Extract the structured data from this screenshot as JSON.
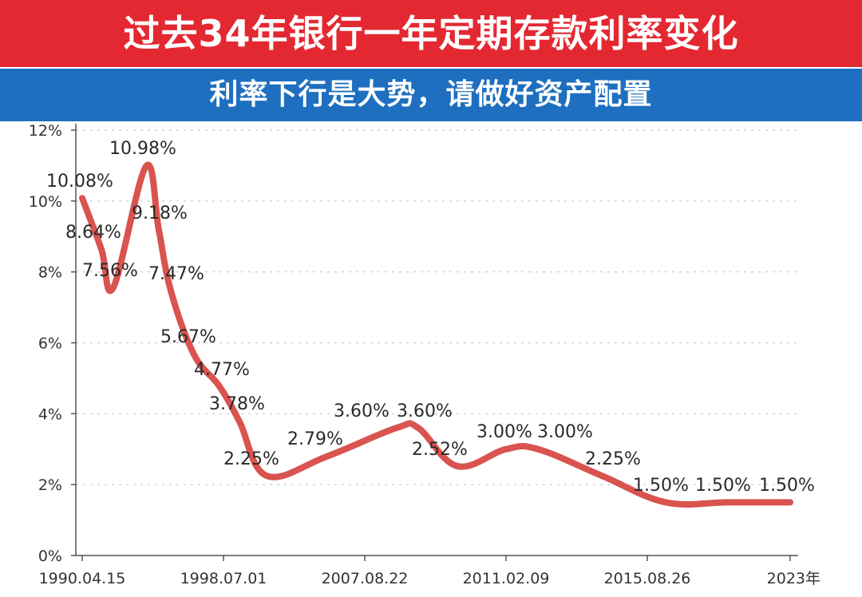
{
  "header": {
    "title": "过去34年银行一年定期存款利率变化",
    "subtitle": "利率下行是大势，请做好资产配置"
  },
  "colors": {
    "title_bg": "#e42832",
    "subtitle_bg": "#1e6fbf",
    "line": "#d9534f"
  },
  "chart_data": {
    "type": "line",
    "title": "过去34年银行一年定期存款利率变化",
    "subtitle": "利率下行是大势，请做好资产配置",
    "xlabel": "",
    "ylabel": "",
    "ylim": [
      0,
      12
    ],
    "y_ticks": [
      "0%",
      "2%",
      "4%",
      "6%",
      "8%",
      "10%",
      "12%"
    ],
    "x_tick_labels": [
      "1990.04.15",
      "1998.07.01",
      "2007.08.22",
      "2011.02.09",
      "2015.08.26",
      "2023年"
    ],
    "grid": true,
    "series": [
      {
        "values": [
          10.08,
          8.64,
          7.56,
          10.98,
          9.18,
          7.47,
          5.67,
          4.77,
          3.78,
          2.25,
          2.79,
          3.6,
          3.6,
          2.52,
          3.0,
          3.0,
          2.25,
          1.5,
          1.5,
          1.5
        ],
        "labels": [
          "10.08%",
          "8.64%",
          "7.56%",
          "10.98%",
          "9.18%",
          "7.47%",
          "5.67%",
          "4.77%",
          "3.78%",
          "2.25%",
          "2.79%",
          "3.60%",
          "3.60%",
          "2.52%",
          "3.00%",
          "3.00%",
          "2.25%",
          "1.50%",
          "1.50%",
          "1.50%"
        ]
      }
    ]
  }
}
